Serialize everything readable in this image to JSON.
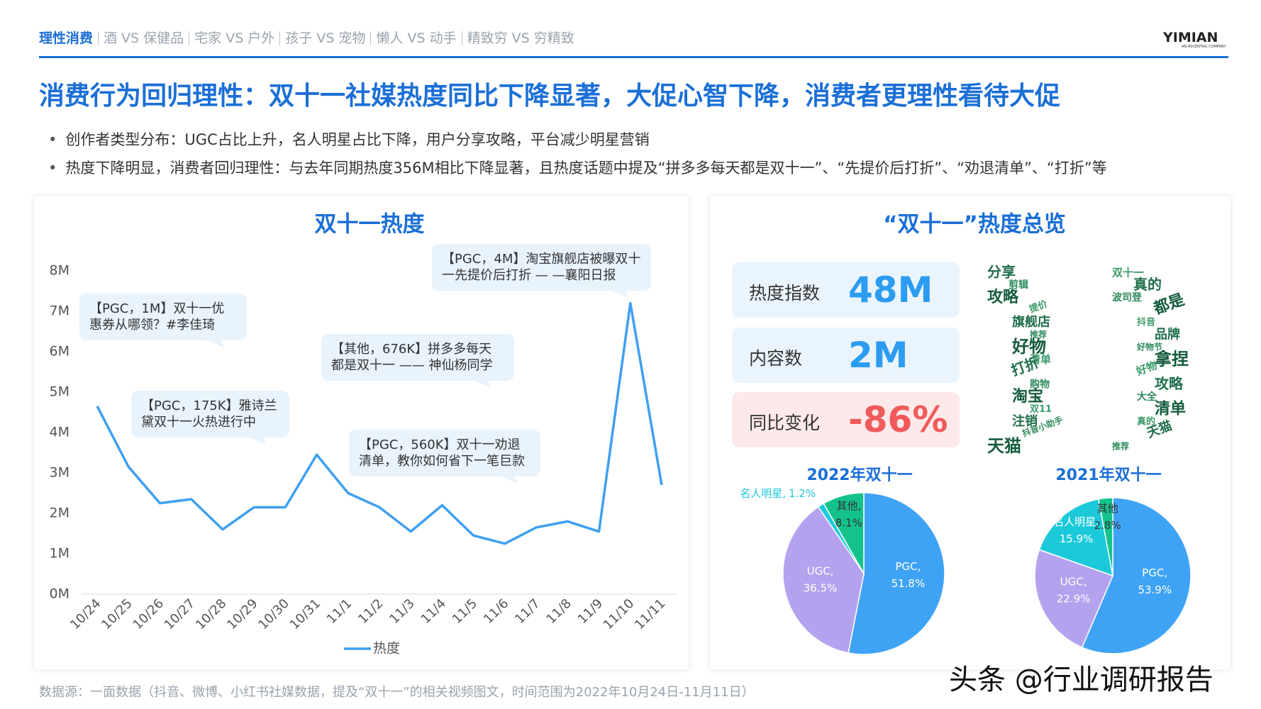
{
  "header": {
    "tabs": [
      "理性消费",
      "酒 VS 保健品",
      "宅家 VS 户外",
      "孩子 VS 宠物",
      "懒人 VS 动手",
      "精致穷 VS 穷精致"
    ],
    "logo": "YIMIAN",
    "logo_sub": "AN ASCENTIAL COMPANY"
  },
  "title": "消费行为回归理性：双十一社媒热度同比下降显著，大促心智下降，消费者更理性看待大促",
  "bullets": [
    "创作者类型分布：UGC占比上升，名人明星占比下降，用户分享攻略，平台减少明星营销",
    "热度下降明显，消费者回归理性：与去年同期热度356M相比下降显著，且热度话题中提及“拼多多每天都是双十一”、“先提价后打折”、“劝退清单”、“打折”等"
  ],
  "overview": {
    "title": "“双十一”热度总览",
    "kpis": [
      {
        "label": "热度指数",
        "value": "48M"
      },
      {
        "label": "内容数",
        "value": "2M"
      },
      {
        "label": "同比变化",
        "value": "-86%"
      }
    ]
  },
  "word_cloud": [
    "分享",
    "剪辑",
    "攻略",
    "提价",
    "旗舰店",
    "推荐",
    "好物",
    "清单",
    "打折",
    "购物",
    "淘宝",
    "双11",
    "注销",
    "抖音小助手",
    "天猫",
    "双十一",
    "真的",
    "波司登",
    "都是",
    "抖音",
    "品牌",
    "好物节",
    "拿捏",
    "好物",
    "攻略",
    "大全",
    "清单",
    "真的",
    "天猫",
    "推荐"
  ],
  "chart_data": [
    {
      "type": "line",
      "title": "双十一热度",
      "categories": [
        "10/24",
        "10/25",
        "10/26",
        "10/27",
        "10/28",
        "10/29",
        "10/30",
        "10/31",
        "11/1",
        "11/2",
        "11/3",
        "11/4",
        "11/5",
        "11/6",
        "11/7",
        "11/8",
        "11/9",
        "11/10",
        "11/11"
      ],
      "series": [
        {
          "name": "热度",
          "color": "#3fa0f0",
          "values": [
            4.65,
            3.15,
            2.25,
            2.35,
            1.6,
            2.15,
            2.15,
            3.45,
            2.5,
            2.15,
            1.55,
            2.2,
            1.45,
            1.25,
            1.65,
            1.8,
            1.55,
            7.2,
            2.7
          ]
        }
      ],
      "ylim": [
        0,
        8
      ],
      "yticks": [
        {
          "value": 0,
          "label": "0M"
        },
        {
          "value": 1,
          "label": "1M"
        },
        {
          "value": 2,
          "label": "2M"
        },
        {
          "value": 3,
          "label": "3M"
        },
        {
          "value": 4,
          "label": "4M"
        },
        {
          "value": 5,
          "label": "5M"
        },
        {
          "value": 6,
          "label": "6M"
        },
        {
          "value": 7,
          "label": "7M"
        },
        {
          "value": 8,
          "label": "8M"
        }
      ],
      "annotations": [
        "【PGC，1M】双十一优惠券从哪领？#李佳琦",
        "【PGC，175K】雅诗兰黛双十一火热进行中",
        "【其他，676K】拼多多每天都是双十一 —— 神仙杨同学",
        "【PGC，560K】双十一劝退清单，教你如何省下一笔巨款",
        "【PGC，4M】淘宝旗舰店被曝双十一先提价后打折 — —襄阳日报"
      ]
    },
    {
      "type": "pie",
      "title": "2022年双十一",
      "categories": [
        "PGC,",
        "UGC,",
        "名人明星,",
        "其他,"
      ],
      "values": [
        51.8,
        36.5,
        1.2,
        8.1
      ],
      "value_labels": [
        "51.8%",
        "36.5%",
        "1.2%",
        "8.1%"
      ],
      "colors": [
        "#3fa3f5",
        "#b4a2ee",
        "#1cc9d9",
        "#14c38c"
      ]
    },
    {
      "type": "pie",
      "title": "2021年双十一",
      "categories": [
        "PGC,",
        "UGC,",
        "名人明星,",
        "其他"
      ],
      "values": [
        53.9,
        22.9,
        15.9,
        2.8
      ],
      "value_labels": [
        "53.9%",
        "22.9%",
        "15.9%",
        "2.8%"
      ],
      "colors": [
        "#3fa3f5",
        "#b4a2ee",
        "#1cc9d9",
        "#14c38c"
      ]
    }
  ],
  "source": "数据源：一面数据（抖音、微博、小红书社媒数据，提及“双十一”的相关视频图文，时间范围为2022年10月24日-11月11日）",
  "watermark": "头条 @行业调研报告"
}
